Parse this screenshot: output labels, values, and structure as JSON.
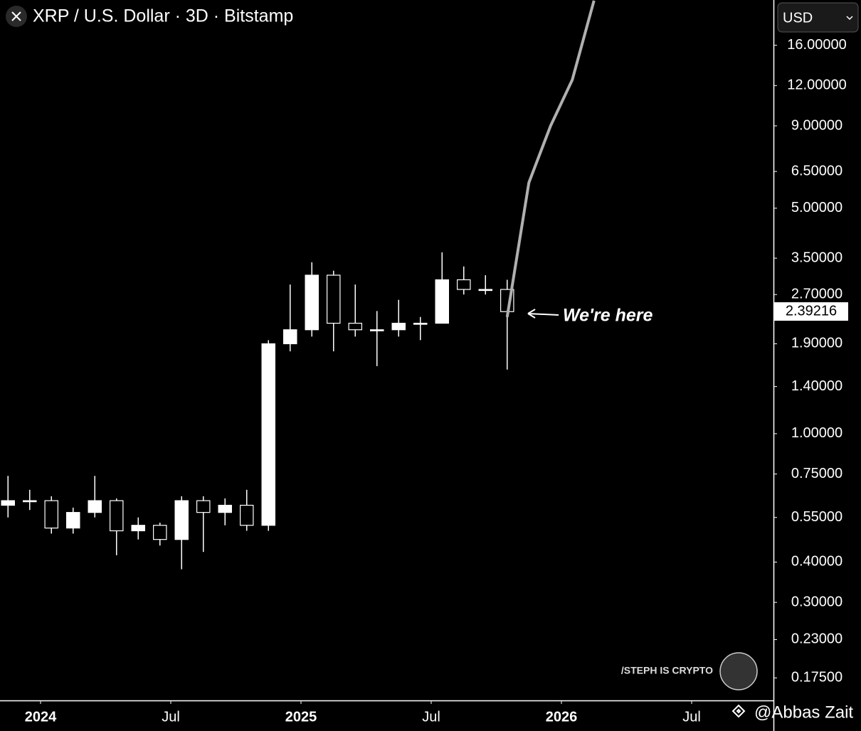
{
  "chart_data": {
    "type": "candlestick",
    "title": "XRP / U.S. Dollar · 3D · Bitstamp",
    "currency": "USD",
    "x": [
      "2023-11",
      "2023-12",
      "2024-01",
      "2024-02",
      "2024-03",
      "2024-04",
      "2024-05",
      "2024-06",
      "2024-07",
      "2024-08",
      "2024-09",
      "2024-10",
      "2024-11",
      "2024-12",
      "2025-01",
      "2025-02",
      "2025-03",
      "2025-04",
      "2025-05",
      "2025-06",
      "2025-07",
      "2025-08",
      "2025-09",
      "2025-10"
    ],
    "open": [
      0.6,
      0.62,
      0.62,
      0.51,
      0.57,
      0.62,
      0.5,
      0.52,
      0.47,
      0.62,
      0.57,
      0.6,
      0.52,
      1.9,
      2.1,
      3.1,
      2.2,
      2.1,
      2.1,
      2.2,
      2.2,
      3.0,
      2.8,
      2.8
    ],
    "high": [
      0.74,
      0.67,
      0.64,
      0.59,
      0.74,
      0.63,
      0.55,
      0.53,
      0.64,
      0.64,
      0.63,
      0.67,
      1.95,
      2.9,
      3.4,
      3.2,
      2.9,
      2.4,
      2.6,
      2.3,
      3.65,
      3.3,
      3.1,
      3.0
    ],
    "low": [
      0.55,
      0.58,
      0.49,
      0.49,
      0.55,
      0.42,
      0.47,
      0.45,
      0.38,
      0.43,
      0.52,
      0.5,
      0.5,
      1.8,
      2.0,
      1.8,
      2.0,
      1.62,
      2.0,
      1.95,
      2.2,
      2.7,
      2.7,
      1.58
    ],
    "close": [
      0.62,
      0.62,
      0.51,
      0.57,
      0.62,
      0.5,
      0.52,
      0.47,
      0.62,
      0.57,
      0.6,
      0.52,
      1.9,
      2.1,
      3.1,
      2.2,
      2.1,
      2.1,
      2.2,
      2.2,
      3.0,
      2.8,
      2.8,
      2.39
    ],
    "projection": {
      "x": [
        "2025-10",
        "2025-11",
        "2025-12",
        "2026-01",
        "2026-02"
      ],
      "values": [
        2.3,
        6.0,
        9.0,
        12.5,
        22
      ],
      "color": "#b0b0b0"
    },
    "last_price": 2.39216,
    "log_scale": true,
    "xlim": [
      "2023-11",
      "2026-11"
    ],
    "xticks": [
      {
        "value": "2024-01",
        "label": "2024"
      },
      {
        "value": "2024-07",
        "label": "Jul"
      },
      {
        "value": "2025-01",
        "label": "2025"
      },
      {
        "value": "2025-07",
        "label": "Jul"
      },
      {
        "value": "2026-01",
        "label": "2026"
      },
      {
        "value": "2026-07",
        "label": "Jul"
      }
    ],
    "ylim": [
      0.149,
      22.1
    ],
    "yticks": [
      {
        "value": 0.175,
        "label": "0.17500"
      },
      {
        "value": 0.23,
        "label": "0.23000"
      },
      {
        "value": 0.3,
        "label": "0.30000"
      },
      {
        "value": 0.4,
        "label": "0.40000"
      },
      {
        "value": 0.55,
        "label": "0.55000"
      },
      {
        "value": 0.75,
        "label": "0.75000"
      },
      {
        "value": 1,
        "label": "1.00000"
      },
      {
        "value": 1.4,
        "label": "1.40000"
      },
      {
        "value": 1.9,
        "label": "1.90000"
      },
      {
        "value": 2.7,
        "label": "2.70000"
      },
      {
        "value": 3.5,
        "label": "3.50000"
      },
      {
        "value": 5,
        "label": "5.00000"
      },
      {
        "value": 6.5,
        "label": "6.50000"
      },
      {
        "value": 9,
        "label": "9.00000"
      },
      {
        "value": 12,
        "label": "12.00000"
      },
      {
        "value": 16,
        "label": "16.00000"
      }
    ],
    "annotation": "We're here",
    "watermark": "/STEPH IS CRYPTO",
    "credit": "@Abbas Zait"
  }
}
